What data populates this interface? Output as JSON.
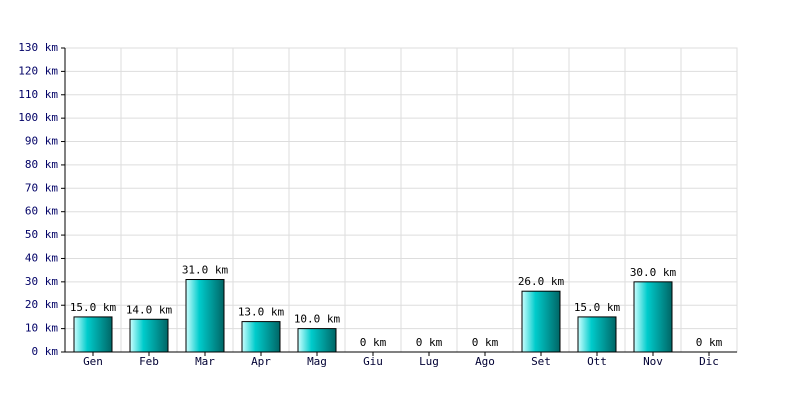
{
  "chart_data": {
    "type": "bar",
    "categories": [
      "Gen",
      "Feb",
      "Mar",
      "Apr",
      "Mag",
      "Giu",
      "Lug",
      "Ago",
      "Set",
      "Ott",
      "Nov",
      "Dic"
    ],
    "values": [
      15,
      14,
      31,
      13,
      10,
      0,
      0,
      0,
      26,
      15,
      30,
      0
    ],
    "value_labels": [
      "15.0 km",
      "14.0 km",
      "31.0 km",
      "13.0 km",
      "10.0 km",
      "0 km",
      "0 km",
      "0 km",
      "26.0 km",
      "15.0 km",
      "30.0 km",
      "0 km"
    ],
    "color": "#00cccc",
    "ylim": [
      0,
      130
    ],
    "yticks": [
      {
        "value": 0,
        "label": "0 km"
      },
      {
        "value": 10,
        "label": "10 km"
      },
      {
        "value": 20,
        "label": "20 km"
      },
      {
        "value": 30,
        "label": "30 km"
      },
      {
        "value": 40,
        "label": "40 km"
      },
      {
        "value": 50,
        "label": "50 km"
      },
      {
        "value": 60,
        "label": "60 km"
      },
      {
        "value": 70,
        "label": "70 km"
      },
      {
        "value": 80,
        "label": "80 km"
      },
      {
        "value": 90,
        "label": "90 km"
      },
      {
        "value": 100,
        "label": "100 km"
      },
      {
        "value": 110,
        "label": "110 km"
      },
      {
        "value": 120,
        "label": "120 km"
      },
      {
        "value": 130,
        "label": "130 km"
      }
    ],
    "grid": true
  }
}
